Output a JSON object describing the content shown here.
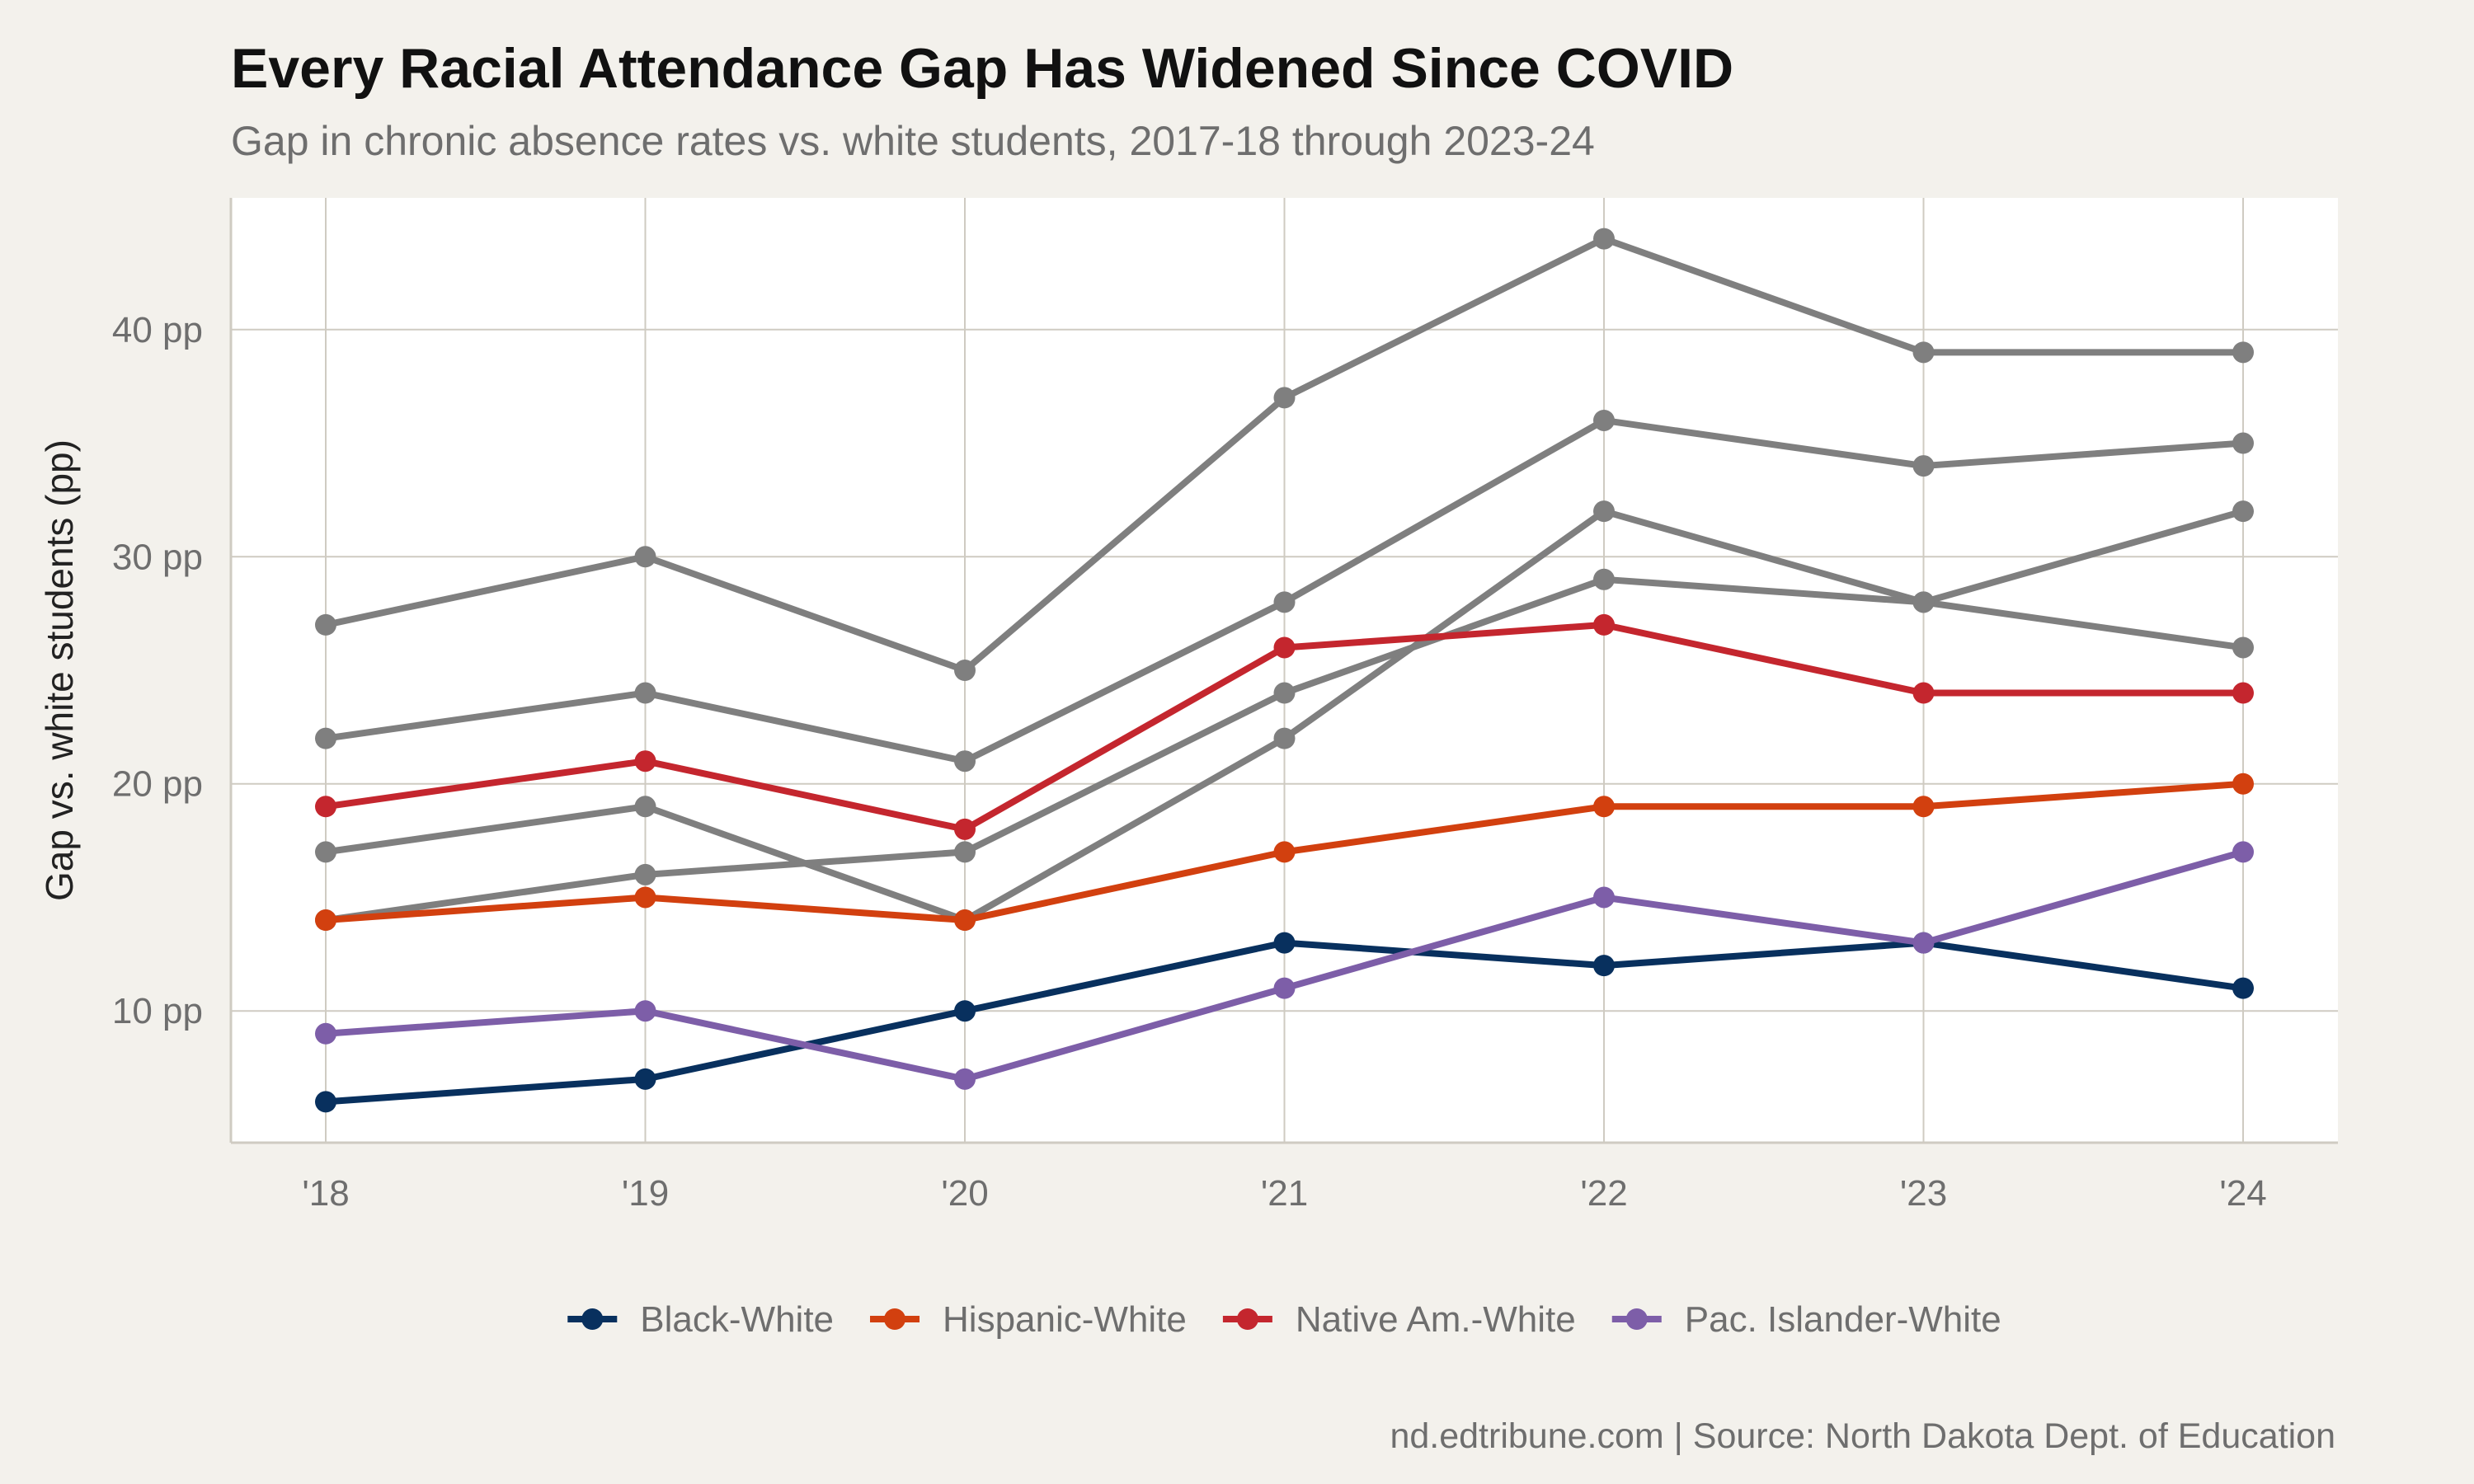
{
  "title": "Every Racial Attendance Gap Has Widened Since COVID",
  "subtitle": "Gap in chronic absence rates vs. white students, 2017-18 through 2023-24",
  "caption": "nd.edtribune.com | Source: North Dakota Dept. of Education",
  "colors": {
    "background": "#f3f1ec",
    "panel": "#ffffff",
    "grid": "#cfcbc2",
    "gray_series": "#7f7f7f",
    "text_muted": "#6e6e6e"
  },
  "chart_data": {
    "type": "line",
    "title": "Every Racial Attendance Gap Has Widened Since COVID",
    "subtitle": "Gap in chronic absence rates vs. white students, 2017-18 through 2023-24",
    "xlabel": "",
    "ylabel": "Gap vs. white students (pp)",
    "categories": [
      "'18",
      "'19",
      "'20",
      "'21",
      "'22",
      "'23",
      "'24"
    ],
    "ylim": [
      4.2,
      45.8
    ],
    "yticks": [
      10,
      20,
      30,
      40
    ],
    "ytick_labels": [
      "10 pp",
      "20 pp",
      "30 pp",
      "40 pp"
    ],
    "grid": true,
    "legend_position": "bottom",
    "series": [
      {
        "values": [
          27,
          30,
          25,
          37,
          44,
          39,
          39
        ],
        "color": "#7f7f7f",
        "highlight": false
      },
      {
        "values": [
          22,
          24,
          21,
          28,
          36,
          34,
          35
        ],
        "color": "#7f7f7f",
        "highlight": false
      },
      {
        "values": [
          17,
          19,
          14,
          22,
          32,
          28,
          32
        ],
        "color": "#7f7f7f",
        "highlight": false
      },
      {
        "values": [
          14,
          16,
          17,
          24,
          29,
          28,
          26
        ],
        "color": "#7f7f7f",
        "highlight": false
      },
      {
        "name": "Black-White",
        "values": [
          6,
          7,
          10,
          13,
          12,
          13,
          11
        ],
        "color": "#08305e",
        "highlight": true
      },
      {
        "name": "Hispanic-White",
        "values": [
          14,
          15,
          14,
          17,
          19,
          19,
          20
        ],
        "color": "#d2400f",
        "highlight": true
      },
      {
        "name": "Native Am.-White",
        "values": [
          19,
          21,
          18,
          26,
          27,
          24,
          24
        ],
        "color": "#c4262e",
        "highlight": true
      },
      {
        "name": "Pac. Islander-White",
        "values": [
          9,
          10,
          7,
          11,
          15,
          13,
          17
        ],
        "color": "#7d5ea8",
        "highlight": true
      }
    ]
  }
}
